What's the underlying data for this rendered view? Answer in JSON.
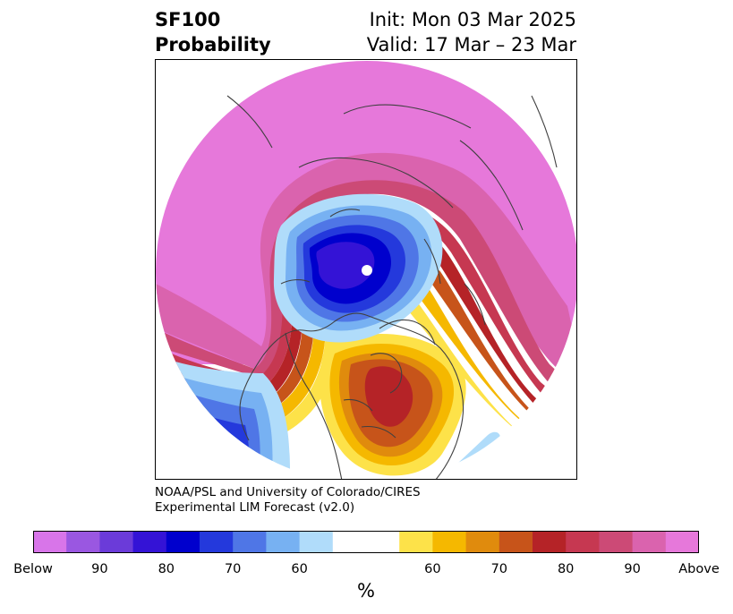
{
  "title": {
    "left_line1": "SF100",
    "left_line2": "Probability",
    "right_line1": "Init: Mon 03 Mar 2025",
    "right_line2": "Valid: 17 Mar – 23 Mar"
  },
  "credit": {
    "line1": "NOAA/PSL and University of Colorado/CIRES",
    "line2": "Experimental LIM Forecast (v2.0)"
  },
  "colorbar": {
    "unit": "%",
    "colors": [
      "#d875e9",
      "#9a57e1",
      "#6b3bd9",
      "#3413d6",
      "#0000cd",
      "#2439dc",
      "#4f76e6",
      "#77b1f2",
      "#b0dcfa",
      "#ffffff",
      "#ffffff",
      "#fde249",
      "#f5b800",
      "#e08b0d",
      "#c7541a",
      "#b52327",
      "#c63851",
      "#cc4a76",
      "#da63ae",
      "#e678da"
    ],
    "labels": [
      {
        "text": "Below",
        "index": 0
      },
      {
        "text": "90",
        "index": 2
      },
      {
        "text": "80",
        "index": 4
      },
      {
        "text": "70",
        "index": 6
      },
      {
        "text": "60",
        "index": 8
      },
      {
        "text": "60",
        "index": 12
      },
      {
        "text": "70",
        "index": 14
      },
      {
        "text": "80",
        "index": 16
      },
      {
        "text": "90",
        "index": 18
      },
      {
        "text": "Above",
        "index": 20
      }
    ]
  },
  "map": {
    "projection": "north-polar-stereographic",
    "coastline_color": "#404040",
    "colors": {
      "above_max": "#e678da",
      "above_90": "#da63ae",
      "above_85": "#cc4a76",
      "above_80": "#c63851",
      "above_75": "#b52327",
      "above_70": "#c7541a",
      "above_65": "#e08b0d",
      "above_60": "#f5b800",
      "above_55": "#fde249",
      "below_55": "#b0dcfa",
      "below_60": "#77b1f2",
      "below_65": "#4f76e6",
      "below_70": "#2439dc",
      "below_75": "#0000cd",
      "below_80": "#3413d6",
      "below_85": "#6b3bd9"
    }
  }
}
